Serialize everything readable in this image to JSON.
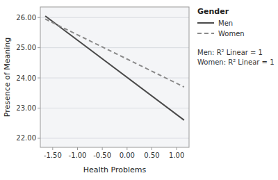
{
  "chart_data": {
    "type": "line",
    "xlabel": "Health Problems",
    "ylabel": "Presence of Meaning",
    "x": [
      -1.65,
      1.15
    ],
    "series": [
      {
        "name": "Men",
        "color": "#4a4a4a",
        "line_style": "solid",
        "values": [
          26.05,
          22.6
        ]
      },
      {
        "name": "Women",
        "color": "#8a8a8a",
        "line_style": "dashed",
        "values": [
          25.95,
          23.7
        ]
      }
    ],
    "xlim": [
      -1.75,
      1.25
    ],
    "ylim": [
      21.7,
      26.35
    ],
    "xticks": [
      {
        "value": -1.5,
        "label": "-1.50"
      },
      {
        "value": -1.0,
        "label": "-1.00"
      },
      {
        "value": -0.5,
        "label": "-0.50"
      },
      {
        "value": 0.0,
        "label": "0.00"
      },
      {
        "value": 0.5,
        "label": "0.50"
      },
      {
        "value": 1.0,
        "label": "1.00"
      }
    ],
    "yticks": [
      {
        "value": 22.0,
        "label": "22.00"
      },
      {
        "value": 23.0,
        "label": "23.00"
      },
      {
        "value": 24.0,
        "label": "24.00"
      },
      {
        "value": 25.0,
        "label": "25.00"
      },
      {
        "value": 26.0,
        "label": "26.00"
      }
    ],
    "grid": true,
    "legend": "right",
    "legend_title": "Gender",
    "annotations": [
      "Men: R² Linear = 1",
      "Women: R² Linear = 1"
    ]
  }
}
